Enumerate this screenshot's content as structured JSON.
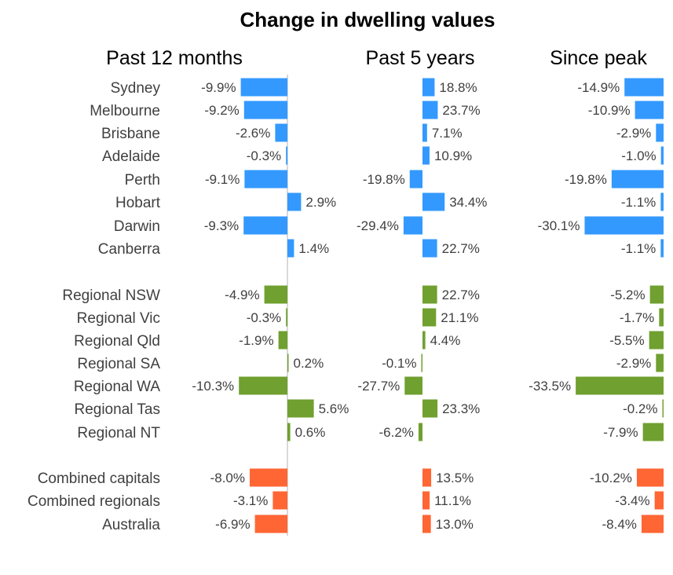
{
  "chart_data": {
    "type": "bar",
    "orientation": "horizontal",
    "title": "Change in dwelling values",
    "categories": [
      "Sydney",
      "Melbourne",
      "Brisbane",
      "Adelaide",
      "Perth",
      "Hobart",
      "Darwin",
      "Canberra",
      "Regional NSW",
      "Regional Vic",
      "Regional Qld",
      "Regional SA",
      "Regional WA",
      "Regional Tas",
      "Regional NT",
      "Combined capitals",
      "Combined regionals",
      "Australia"
    ],
    "groups": [
      {
        "name": "capitals",
        "color": "#3399FF",
        "count": 8
      },
      {
        "name": "regional",
        "color": "#70A030",
        "count": 7
      },
      {
        "name": "combined",
        "color": "#FF6633",
        "count": 3
      }
    ],
    "series": [
      {
        "name": "Past 12 months",
        "values": [
          -9.9,
          -9.2,
          -2.6,
          -0.3,
          -9.1,
          2.9,
          -9.3,
          1.4,
          -4.9,
          -0.3,
          -1.9,
          0.2,
          -10.3,
          5.6,
          0.6,
          -8.0,
          -3.1,
          -6.9
        ],
        "labels": [
          "-9.9%",
          "-9.2%",
          "-2.6%",
          "-0.3%",
          "-9.1%",
          "2.9%",
          "-9.3%",
          "1.4%",
          "-4.9%",
          "-0.3%",
          "-1.9%",
          "0.2%",
          "-10.3%",
          "5.6%",
          "0.6%",
          "-8.0%",
          "-3.1%",
          "-6.9%"
        ]
      },
      {
        "name": "Past 5 years",
        "values": [
          18.8,
          23.7,
          7.1,
          10.9,
          -19.8,
          34.4,
          -29.4,
          22.7,
          22.7,
          21.1,
          4.4,
          -0.1,
          -27.7,
          23.3,
          -6.2,
          13.5,
          11.1,
          13.0
        ],
        "labels": [
          "18.8%",
          "23.7%",
          "7.1%",
          "10.9%",
          "-19.8%",
          "34.4%",
          "-29.4%",
          "22.7%",
          "22.7%",
          "21.1%",
          "4.4%",
          "-0.1%",
          "-27.7%",
          "23.3%",
          "-6.2%",
          "13.5%",
          "11.1%",
          "13.0%"
        ]
      },
      {
        "name": "Since peak",
        "values": [
          -14.9,
          -10.9,
          -2.9,
          -1.0,
          -19.8,
          -1.1,
          -30.1,
          -1.1,
          -5.2,
          -1.7,
          -5.5,
          -2.9,
          -33.5,
          -0.2,
          -7.9,
          -10.2,
          -3.4,
          -8.4
        ],
        "labels": [
          "-14.9%",
          "-10.9%",
          "-2.9%",
          "-1.0%",
          "-19.8%",
          "-1.1%",
          "-30.1%",
          "-1.1%",
          "-5.2%",
          "-1.7%",
          "-5.5%",
          "-2.9%",
          "-33.5%",
          "-0.2%",
          "-7.9%",
          "-10.2%",
          "-3.4%",
          "-8.4%"
        ]
      }
    ],
    "axis_line_color": "#D9D9D9",
    "grid": false,
    "legend": "none"
  }
}
